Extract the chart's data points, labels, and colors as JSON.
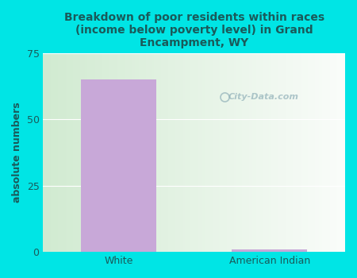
{
  "categories": [
    "White",
    "American Indian"
  ],
  "values": [
    65,
    1
  ],
  "bar_color": "#c8a8d8",
  "title": "Breakdown of poor residents within races\n(income below poverty level) in Grand\nEncampment, WY",
  "ylabel": "absolute numbers",
  "ylim": [
    0,
    75
  ],
  "yticks": [
    0,
    25,
    50,
    75
  ],
  "bg_color": "#00e5e5",
  "title_color": "#1a5a5a",
  "axis_label_color": "#1a5a5a",
  "tick_color": "#1a5a5a",
  "watermark": "City-Data.com",
  "bar_width": 0.5
}
